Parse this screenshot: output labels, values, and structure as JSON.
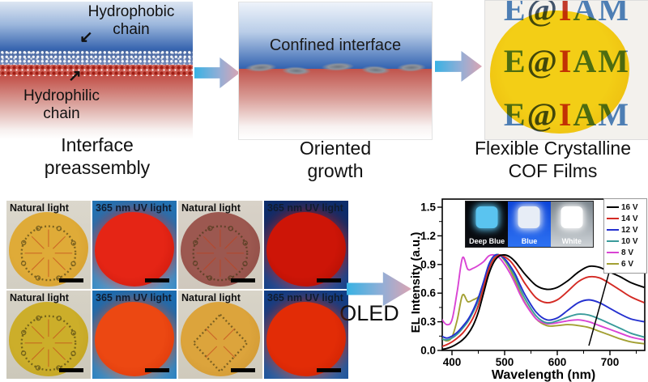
{
  "top": {
    "icons": {
      "down_left_arrow": "↙",
      "up_right_arrow": "↗"
    },
    "panel1": {
      "hydrophobic_label": [
        "Hydrophobic",
        "chain"
      ],
      "hydrophilic_label": [
        "Hydrophilic",
        "chain"
      ],
      "caption": [
        "Interface",
        "preassembly"
      ]
    },
    "panel2": {
      "interface_label": "Confined interface",
      "caption": [
        "Oriented",
        "growth"
      ]
    },
    "panel3": {
      "caption": [
        "Flexible Crystalline",
        "COF Films"
      ],
      "film_color": "#ffd406",
      "watermark_letters": [
        {
          "ch": "E",
          "color": "#4d7eb4"
        },
        {
          "ch": "@",
          "color": "#41536a"
        },
        {
          "ch": "I",
          "color": "#c2392a"
        },
        {
          "ch": "A",
          "color": "#4d7eb4"
        },
        {
          "ch": "M",
          "color": "#4d7eb4"
        }
      ]
    }
  },
  "bottom": {
    "oled_label": "OLED",
    "photo_grid": {
      "cells": [
        {
          "label": "Natural light",
          "mode": "natural",
          "bg": "#dbd7cc",
          "bg2": "#d2cec2",
          "film": "#dfab38",
          "film2": "#d09a2c",
          "structure": "macrocycle"
        },
        {
          "label": "365 nm UV light",
          "mode": "uv",
          "bg": "#2372b2",
          "bg2": "#6ac0ec",
          "film": "#e52515",
          "film2": "#c5150a",
          "structure": null
        },
        {
          "label": "Natural light",
          "mode": "natural",
          "bg": "#d8d2c8",
          "bg2": "#cfc8bd",
          "film": "#9c5850",
          "film2": "#8a4842",
          "structure": "macrocycle"
        },
        {
          "label": "365 nm UV light",
          "mode": "uv",
          "bg": "#0d2d6b",
          "bg2": "#2f6cc2",
          "film": "#cd1507",
          "film2": "#a60d03",
          "structure": null
        },
        {
          "label": "Natural light",
          "mode": "natural",
          "bg": "#d6d2c6",
          "bg2": "#ccc8ba",
          "film": "#ccae2a",
          "film2": "#bc9e20",
          "structure": "macrocycle"
        },
        {
          "label": "365 nm UV light",
          "mode": "uv",
          "bg": "#1b6cb0",
          "bg2": "#55b2e2",
          "film": "#ec4812",
          "film2": "#d83208",
          "structure": null
        },
        {
          "label": "Natural light",
          "mode": "natural",
          "bg": "#d8d4c8",
          "bg2": "#cfcabc",
          "film": "#dca43c",
          "film2": "#cc9430",
          "structure": "net"
        },
        {
          "label": "365 nm UV light",
          "mode": "uv",
          "bg": "#123e85",
          "bg2": "#3f86c8",
          "film": "#e22c06",
          "film2": "#c61e02",
          "structure": null
        }
      ]
    }
  },
  "chart_data": {
    "type": "line",
    "title": "",
    "xlabel": "Wavelength (nm)",
    "ylabel": "EL Intensity (a.u.)",
    "xlim": [
      380,
      766
    ],
    "ylim": [
      0,
      1.59
    ],
    "xticks": [
      400,
      500,
      600,
      700
    ],
    "yticks": [
      0.0,
      0.3,
      0.6,
      0.9,
      1.2,
      1.5
    ],
    "grid": false,
    "legend_position": "top-right",
    "x": [
      380,
      390,
      400,
      410,
      420,
      430,
      440,
      450,
      460,
      470,
      480,
      490,
      500,
      510,
      520,
      530,
      540,
      560,
      580,
      600,
      620,
      640,
      660,
      680,
      700,
      720,
      740,
      765
    ],
    "series": [
      {
        "name": "16 V",
        "color": "#000000",
        "values": [
          0.01,
          0.02,
          0.04,
          0.07,
          0.11,
          0.17,
          0.26,
          0.4,
          0.6,
          0.8,
          0.93,
          0.99,
          1.0,
          0.98,
          0.93,
          0.86,
          0.79,
          0.68,
          0.64,
          0.66,
          0.73,
          0.82,
          0.88,
          0.87,
          0.82,
          0.77,
          0.71,
          0.66
        ]
      },
      {
        "name": "14 V",
        "color": "#d42a24",
        "values": [
          0.04,
          0.06,
          0.09,
          0.13,
          0.18,
          0.25,
          0.34,
          0.47,
          0.66,
          0.85,
          0.96,
          1.0,
          0.98,
          0.94,
          0.87,
          0.78,
          0.69,
          0.55,
          0.5,
          0.53,
          0.62,
          0.72,
          0.77,
          0.76,
          0.7,
          0.63,
          0.56,
          0.5
        ]
      },
      {
        "name": "12 V",
        "color": "#2430cf",
        "values": [
          0.15,
          0.13,
          0.15,
          0.19,
          0.25,
          0.32,
          0.42,
          0.55,
          0.72,
          0.9,
          0.99,
          1.0,
          0.96,
          0.89,
          0.8,
          0.68,
          0.57,
          0.4,
          0.32,
          0.34,
          0.42,
          0.5,
          0.53,
          0.5,
          0.44,
          0.38,
          0.33,
          0.3
        ]
      },
      {
        "name": "10 V",
        "color": "#3a9b9b",
        "values": [
          0.12,
          0.11,
          0.13,
          0.17,
          0.23,
          0.3,
          0.4,
          0.52,
          0.7,
          0.89,
          0.99,
          1.0,
          0.95,
          0.87,
          0.77,
          0.64,
          0.53,
          0.36,
          0.29,
          0.31,
          0.35,
          0.38,
          0.37,
          0.33,
          0.28,
          0.23,
          0.18,
          0.14
        ]
      },
      {
        "name": "8 V",
        "color": "#d944d4",
        "values": [
          0.33,
          0.27,
          0.32,
          0.62,
          0.97,
          0.85,
          0.86,
          0.89,
          0.93,
          0.99,
          1.0,
          0.97,
          0.9,
          0.81,
          0.7,
          0.58,
          0.48,
          0.33,
          0.28,
          0.29,
          0.31,
          0.32,
          0.3,
          0.26,
          0.22,
          0.18,
          0.14,
          0.11
        ]
      },
      {
        "name": "6 V",
        "color": "#a3a033",
        "values": [
          0.13,
          0.1,
          0.14,
          0.32,
          0.58,
          0.51,
          0.53,
          0.56,
          0.65,
          0.85,
          0.98,
          1.0,
          0.94,
          0.85,
          0.73,
          0.6,
          0.49,
          0.33,
          0.26,
          0.26,
          0.27,
          0.26,
          0.24,
          0.2,
          0.16,
          0.12,
          0.09,
          0.07
        ]
      }
    ],
    "annotation_arrow": {
      "from_nm": 660,
      "from_val": 0.05,
      "to_nm": 710,
      "to_val": 1.05
    },
    "inset": {
      "panels": [
        {
          "label": "Deep Blue",
          "bg1": "#04060a",
          "bg2": "#0b0d12",
          "square": "#5ac4f0"
        },
        {
          "label": "Blue",
          "bg1": "#0c44d8",
          "bg2": "#2e72f2",
          "square": "#e7edf6"
        },
        {
          "label": "White",
          "bg1": "#79838b",
          "bg2": "#ced3d7",
          "square": "#ffffff"
        }
      ]
    }
  }
}
